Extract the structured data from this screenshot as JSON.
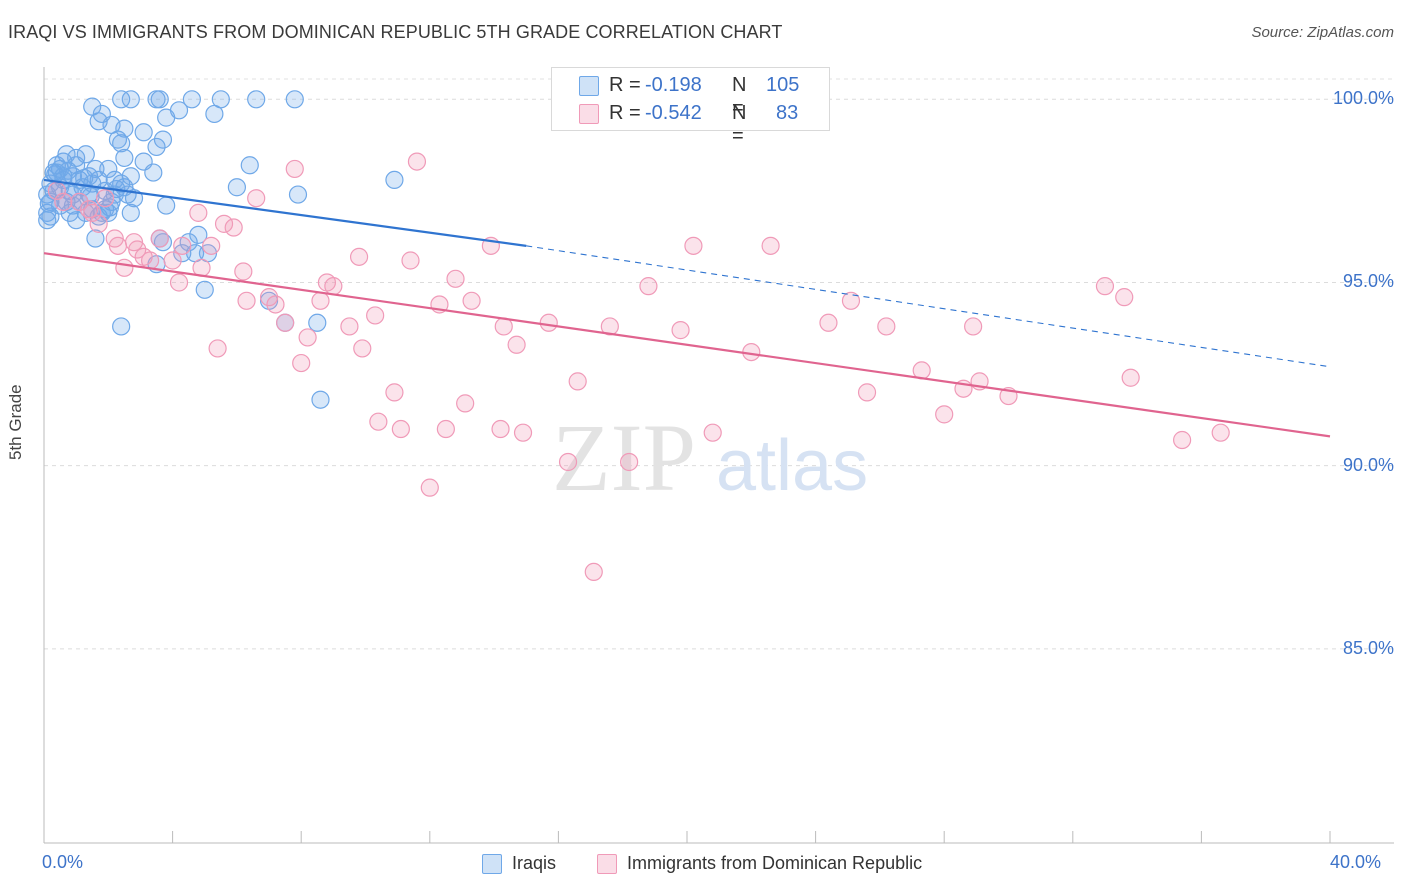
{
  "title": "IRAQI VS IMMIGRANTS FROM DOMINICAN REPUBLIC 5TH GRADE CORRELATION CHART",
  "source": "Source: ZipAtlas.com",
  "watermark": {
    "zip": "ZIP",
    "atlas": "atlas"
  },
  "stats": [
    {
      "r_label": "R =",
      "r_value": "-0.198",
      "n_label": "N =",
      "n_value": "105",
      "color": "#6fa8e8"
    },
    {
      "r_label": "R =",
      "r_value": "-0.542",
      "n_label": "N =",
      "n_value": "83",
      "color": "#f09ab8"
    }
  ],
  "legend": [
    {
      "label": "Iraqis",
      "color": "#6fa8e8"
    },
    {
      "label": "Immigrants from Dominican Republic",
      "color": "#f09ab8"
    }
  ],
  "chart_data": {
    "type": "scatter",
    "title": "IRAQI VS IMMIGRANTS FROM DOMINICAN REPUBLIC 5TH GRADE CORRELATION CHART",
    "xlabel": "",
    "ylabel": "5th Grade",
    "xlim": [
      0,
      40
    ],
    "ylim": [
      79.7,
      100.8
    ],
    "x_tick_labels": [
      {
        "value": 0,
        "label": "0.0%"
      },
      {
        "value": 40,
        "label": "40.0%"
      }
    ],
    "y_tick_labels": [
      {
        "value": 100,
        "label": "100.0%"
      },
      {
        "value": 95,
        "label": "95.0%"
      },
      {
        "value": 90,
        "label": "90.0%"
      },
      {
        "value": 85,
        "label": "85.0%"
      }
    ],
    "x_minor_ticks": [
      0,
      4,
      8,
      12,
      16,
      20,
      24,
      28,
      32,
      36,
      40
    ],
    "grid": true,
    "series": [
      {
        "name": "Iraqis",
        "color": "#6fa8e8",
        "line_color": "#2f74d0",
        "trend": {
          "x": [
            0,
            15
          ],
          "y": [
            97.8,
            96.0
          ],
          "dashed_to": [
            40,
            92.7
          ]
        },
        "points": [
          [
            1.5,
            99.8
          ],
          [
            1.8,
            99.6
          ],
          [
            2.4,
            100
          ],
          [
            2.7,
            100
          ],
          [
            3.5,
            100
          ],
          [
            3.6,
            100
          ],
          [
            3.8,
            99.5
          ],
          [
            4.6,
            100
          ],
          [
            4.2,
            99.7
          ],
          [
            5.5,
            100
          ],
          [
            5.3,
            99.6
          ],
          [
            6.6,
            100
          ],
          [
            7.8,
            100
          ],
          [
            1.7,
            99.4
          ],
          [
            2.1,
            99.3
          ],
          [
            2.5,
            99.2
          ],
          [
            3.1,
            99.1
          ],
          [
            3.7,
            98.9
          ],
          [
            2.3,
            98.9
          ],
          [
            2.4,
            98.8
          ],
          [
            3.5,
            98.7
          ],
          [
            0.7,
            98.5
          ],
          [
            1.3,
            98.5
          ],
          [
            1.0,
            98.4
          ],
          [
            0.6,
            98.3
          ],
          [
            2.5,
            98.4
          ],
          [
            3.1,
            98.3
          ],
          [
            6.4,
            98.2
          ],
          [
            0.5,
            98.1
          ],
          [
            1.6,
            98.1
          ],
          [
            2.0,
            98.1
          ],
          [
            0.3,
            98.0
          ],
          [
            0.4,
            98.0
          ],
          [
            0.9,
            97.9
          ],
          [
            1.4,
            97.9
          ],
          [
            1.7,
            97.8
          ],
          [
            2.2,
            97.8
          ],
          [
            3.4,
            98.0
          ],
          [
            0.6,
            97.9
          ],
          [
            1.5,
            97.7
          ],
          [
            2.7,
            97.9
          ],
          [
            1.1,
            97.8
          ],
          [
            0.2,
            97.7
          ],
          [
            0.5,
            97.6
          ],
          [
            2.5,
            97.6
          ],
          [
            6.0,
            97.6
          ],
          [
            10.9,
            97.8
          ],
          [
            0.8,
            97.5
          ],
          [
            1.4,
            97.4
          ],
          [
            2.2,
            97.4
          ],
          [
            2.6,
            97.4
          ],
          [
            0.1,
            97.4
          ],
          [
            2.8,
            97.3
          ],
          [
            0.7,
            97.2
          ],
          [
            1.1,
            97.2
          ],
          [
            2.1,
            97.2
          ],
          [
            0.9,
            97.1
          ],
          [
            1.9,
            97.0
          ],
          [
            3.8,
            97.1
          ],
          [
            7.9,
            97.4
          ],
          [
            0.1,
            96.9
          ],
          [
            0.2,
            96.8
          ],
          [
            0.8,
            96.9
          ],
          [
            1.0,
            96.7
          ],
          [
            1.7,
            96.8
          ],
          [
            1.8,
            96.9
          ],
          [
            2.7,
            96.9
          ],
          [
            0.1,
            96.7
          ],
          [
            0.5,
            97.1
          ],
          [
            1.3,
            96.9
          ],
          [
            1.6,
            96.2
          ],
          [
            3.6,
            96.2
          ],
          [
            3.7,
            96.1
          ],
          [
            4.5,
            96.1
          ],
          [
            4.8,
            96.3
          ],
          [
            4.3,
            95.8
          ],
          [
            4.7,
            95.8
          ],
          [
            5.1,
            95.8
          ],
          [
            3.5,
            95.5
          ],
          [
            5.0,
            94.8
          ],
          [
            7.0,
            94.5
          ],
          [
            7.5,
            93.9
          ],
          [
            8.5,
            93.9
          ],
          [
            2.4,
            93.8
          ],
          [
            8.6,
            91.8
          ],
          [
            0.3,
            97.5
          ],
          [
            0.6,
            97.8
          ],
          [
            1.2,
            97.6
          ],
          [
            1.9,
            97.5
          ],
          [
            2.4,
            97.7
          ],
          [
            0.4,
            98.2
          ],
          [
            1.0,
            98.2
          ],
          [
            0.2,
            97.2
          ],
          [
            0.9,
            97.4
          ],
          [
            1.5,
            97.0
          ],
          [
            2.0,
            96.9
          ],
          [
            0.35,
            97.95
          ],
          [
            0.75,
            98.05
          ],
          [
            1.25,
            97.85
          ],
          [
            2.25,
            97.55
          ],
          [
            0.15,
            97.15
          ],
          [
            1.45,
            97.35
          ],
          [
            2.05,
            97.05
          ]
        ]
      },
      {
        "name": "Immigrants from Dominican Republic",
        "color": "#f09ab8",
        "line_color": "#e0648f",
        "trend": {
          "x": [
            0,
            40
          ],
          "y": [
            95.8,
            90.8
          ]
        },
        "points": [
          [
            0.6,
            97.2
          ],
          [
            1.1,
            97.2
          ],
          [
            1.4,
            97.0
          ],
          [
            1.5,
            96.9
          ],
          [
            1.7,
            96.6
          ],
          [
            2.2,
            96.2
          ],
          [
            2.3,
            96.0
          ],
          [
            2.5,
            95.4
          ],
          [
            2.8,
            96.1
          ],
          [
            3.1,
            95.7
          ],
          [
            3.3,
            95.6
          ],
          [
            3.6,
            96.2
          ],
          [
            4.0,
            95.6
          ],
          [
            4.2,
            95.0
          ],
          [
            4.3,
            96.0
          ],
          [
            4.8,
            96.9
          ],
          [
            4.9,
            95.4
          ],
          [
            5.2,
            96.0
          ],
          [
            5.6,
            96.6
          ],
          [
            5.9,
            96.5
          ],
          [
            6.2,
            95.3
          ],
          [
            6.3,
            94.5
          ],
          [
            6.6,
            97.3
          ],
          [
            7.0,
            94.6
          ],
          [
            7.2,
            94.4
          ],
          [
            7.5,
            93.9
          ],
          [
            7.8,
            98.1
          ],
          [
            5.4,
            93.2
          ],
          [
            8.0,
            92.8
          ],
          [
            8.2,
            93.5
          ],
          [
            8.6,
            94.5
          ],
          [
            8.8,
            95.0
          ],
          [
            9.0,
            94.9
          ],
          [
            9.5,
            93.8
          ],
          [
            9.8,
            95.7
          ],
          [
            9.9,
            93.2
          ],
          [
            10.3,
            94.1
          ],
          [
            10.4,
            91.2
          ],
          [
            10.9,
            92.0
          ],
          [
            11.1,
            91.0
          ],
          [
            11.4,
            95.6
          ],
          [
            11.6,
            98.3
          ],
          [
            12.0,
            89.4
          ],
          [
            12.3,
            94.4
          ],
          [
            12.5,
            91.0
          ],
          [
            12.8,
            95.1
          ],
          [
            13.1,
            91.7
          ],
          [
            13.3,
            94.5
          ],
          [
            13.9,
            96.0
          ],
          [
            14.2,
            91.0
          ],
          [
            14.3,
            93.8
          ],
          [
            14.7,
            93.3
          ],
          [
            14.9,
            90.9
          ],
          [
            15.7,
            93.9
          ],
          [
            16.3,
            90.1
          ],
          [
            16.6,
            92.3
          ],
          [
            17.1,
            87.1
          ],
          [
            17.6,
            93.8
          ],
          [
            18.2,
            90.1
          ],
          [
            18.8,
            94.9
          ],
          [
            19.8,
            93.7
          ],
          [
            20.2,
            96.0
          ],
          [
            20.8,
            90.9
          ],
          [
            22.0,
            93.1
          ],
          [
            22.6,
            96.0
          ],
          [
            24.4,
            93.9
          ],
          [
            25.1,
            94.5
          ],
          [
            25.6,
            92.0
          ],
          [
            26.2,
            93.8
          ],
          [
            27.3,
            92.6
          ],
          [
            28.0,
            91.4
          ],
          [
            28.6,
            92.1
          ],
          [
            28.9,
            93.8
          ],
          [
            29.1,
            92.3
          ],
          [
            30.0,
            91.9
          ],
          [
            33.0,
            94.9
          ],
          [
            33.6,
            94.6
          ],
          [
            33.8,
            92.4
          ],
          [
            35.4,
            90.7
          ],
          [
            36.6,
            90.9
          ],
          [
            0.4,
            97.5
          ],
          [
            1.9,
            97.3
          ],
          [
            2.9,
            95.9
          ]
        ]
      }
    ]
  }
}
